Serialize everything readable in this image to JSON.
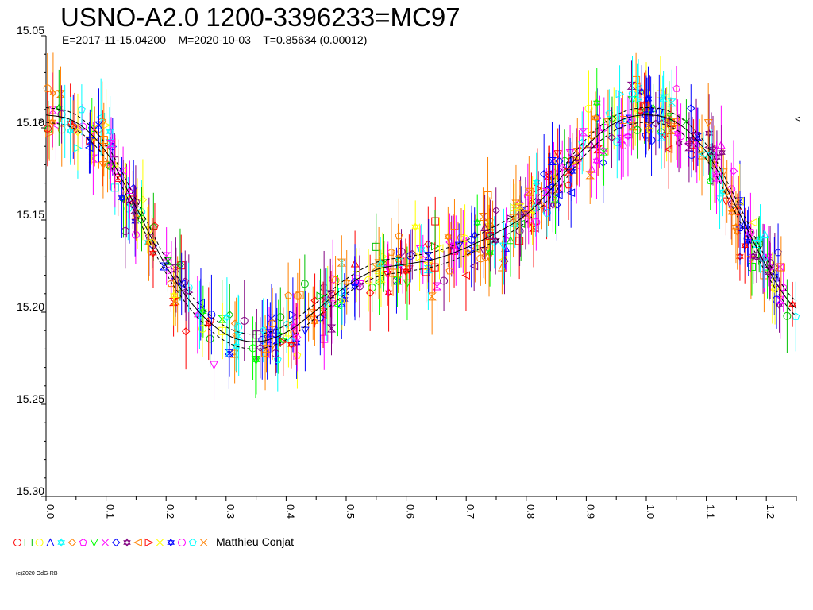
{
  "title": "USNO-A2.0 1200-3396233=MC97",
  "subtitle": "E=2017-11-15.04200    M=2020-10-03    T=0.85634 (0.00012)",
  "observer": "Matthieu Conjat",
  "copyright": "(c)2020 OdG-RB",
  "right_marker": "<",
  "left_marker": ">",
  "legend_symbols": [
    "circle",
    "square",
    "circle",
    "triangle",
    "star",
    "diamond",
    "pentagon",
    "triangle-down",
    "hourglass",
    "diamond",
    "star",
    "triangle-left",
    "triangle-right",
    "hourglass",
    "star",
    "circle",
    "pentagon",
    "hourglass"
  ],
  "colors": [
    "#ff0000",
    "#00c000",
    "#ffff00",
    "#0000ff",
    "#00ffff",
    "#ff8000",
    "#ff00ff",
    "#00ff00",
    "#ff00ff",
    "#0000ff",
    "#800080",
    "#ff8000",
    "#ff0000",
    "#ffff00",
    "#0000ff",
    "#ff00ff",
    "#00ffff",
    "#ff8000",
    "#800080"
  ],
  "chart_data": {
    "type": "scatter",
    "xlabel": "",
    "ylabel": "",
    "xlim": [
      0.0,
      1.25
    ],
    "ylim": [
      15.3,
      15.05
    ],
    "y_inverted": true,
    "xticks": [
      "0.0",
      "0.1",
      "0.2",
      "0.3",
      "0.4",
      "0.5",
      "0.6",
      "0.7",
      "0.8",
      "0.9",
      "1.0",
      "1.1",
      "1.2"
    ],
    "yticks": [
      "15.05",
      "15.10",
      "15.15",
      "15.20",
      "15.25",
      "15.30"
    ],
    "model_curve": {
      "phase": [
        0.0,
        0.05,
        0.1,
        0.15,
        0.2,
        0.25,
        0.3,
        0.35,
        0.4,
        0.45,
        0.5,
        0.55,
        0.6,
        0.65,
        0.7,
        0.75,
        0.8,
        0.85,
        0.9,
        0.95,
        1.0,
        1.05,
        1.1,
        1.15,
        1.2,
        1.25
      ],
      "mag": [
        15.093,
        15.097,
        15.113,
        15.143,
        15.175,
        15.198,
        15.212,
        15.216,
        15.211,
        15.199,
        15.186,
        15.177,
        15.174,
        15.171,
        15.165,
        15.157,
        15.147,
        15.13,
        15.11,
        15.097,
        15.093,
        15.097,
        15.113,
        15.143,
        15.175,
        15.198
      ]
    },
    "model_offset": 0.004,
    "points": {
      "count": 520,
      "phase_range": [
        0.0,
        1.25
      ],
      "mag_scatter": 0.008,
      "error_bar_range": [
        0.012,
        0.022
      ]
    }
  }
}
